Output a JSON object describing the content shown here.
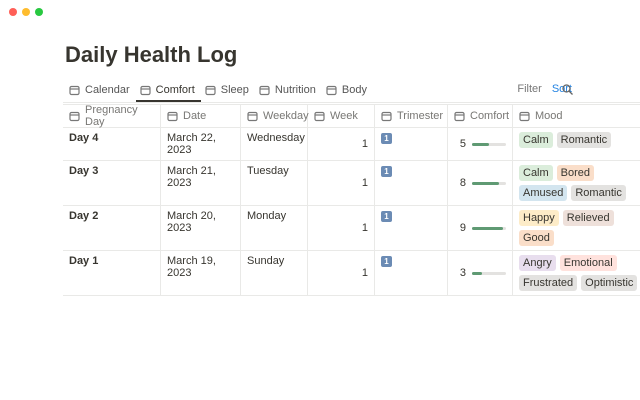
{
  "header": {
    "title": "Daily Health Log"
  },
  "tabs": [
    {
      "label": "Calendar",
      "active": false
    },
    {
      "label": "Comfort",
      "active": true
    },
    {
      "label": "Sleep",
      "active": false
    },
    {
      "label": "Nutrition",
      "active": false
    },
    {
      "label": "Body",
      "active": false
    }
  ],
  "toolbar": {
    "filter": "Filter",
    "sort": "Sort"
  },
  "table": {
    "columns": [
      "Pregnancy Day",
      "Date",
      "Weekday",
      "Week",
      "Trimester",
      "Comfort",
      "Mood"
    ],
    "progress_max": 10,
    "progress_color": "#5f9a73",
    "rows": [
      {
        "day": "Day 4",
        "date": "March 22, 2023",
        "weekday": "Wednesday",
        "week": 1,
        "trimester": "1",
        "comfort": 5,
        "mood": [
          {
            "text": "Calm",
            "color": "#dbeddb"
          },
          {
            "text": "Romantic",
            "color": "#e3e2e0"
          }
        ]
      },
      {
        "day": "Day 3",
        "date": "March 21, 2023",
        "weekday": "Tuesday",
        "week": 1,
        "trimester": "1",
        "comfort": 8,
        "mood": [
          {
            "text": "Calm",
            "color": "#dbeddb"
          },
          {
            "text": "Bored",
            "color": "#fadec9"
          },
          {
            "text": "Amused",
            "color": "#d3e5ef"
          },
          {
            "text": "Romantic",
            "color": "#e3e2e0"
          }
        ]
      },
      {
        "day": "Day 2",
        "date": "March 20, 2023",
        "weekday": "Monday",
        "week": 1,
        "trimester": "1",
        "comfort": 9,
        "mood": [
          {
            "text": "Happy",
            "color": "#fdecc8"
          },
          {
            "text": "Relieved",
            "color": "#eee0da"
          },
          {
            "text": "Good",
            "color": "#fadec9"
          }
        ]
      },
      {
        "day": "Day 1",
        "date": "March 19, 2023",
        "weekday": "Sunday",
        "week": 1,
        "trimester": "1",
        "comfort": 3,
        "mood": [
          {
            "text": "Angry",
            "color": "#e8deee"
          },
          {
            "text": "Emotional",
            "color": "#ffe2dd"
          },
          {
            "text": "Frustrated",
            "color": "#e3e2e0"
          },
          {
            "text": "Optimistic",
            "color": "#e3e2e0"
          }
        ]
      }
    ]
  }
}
